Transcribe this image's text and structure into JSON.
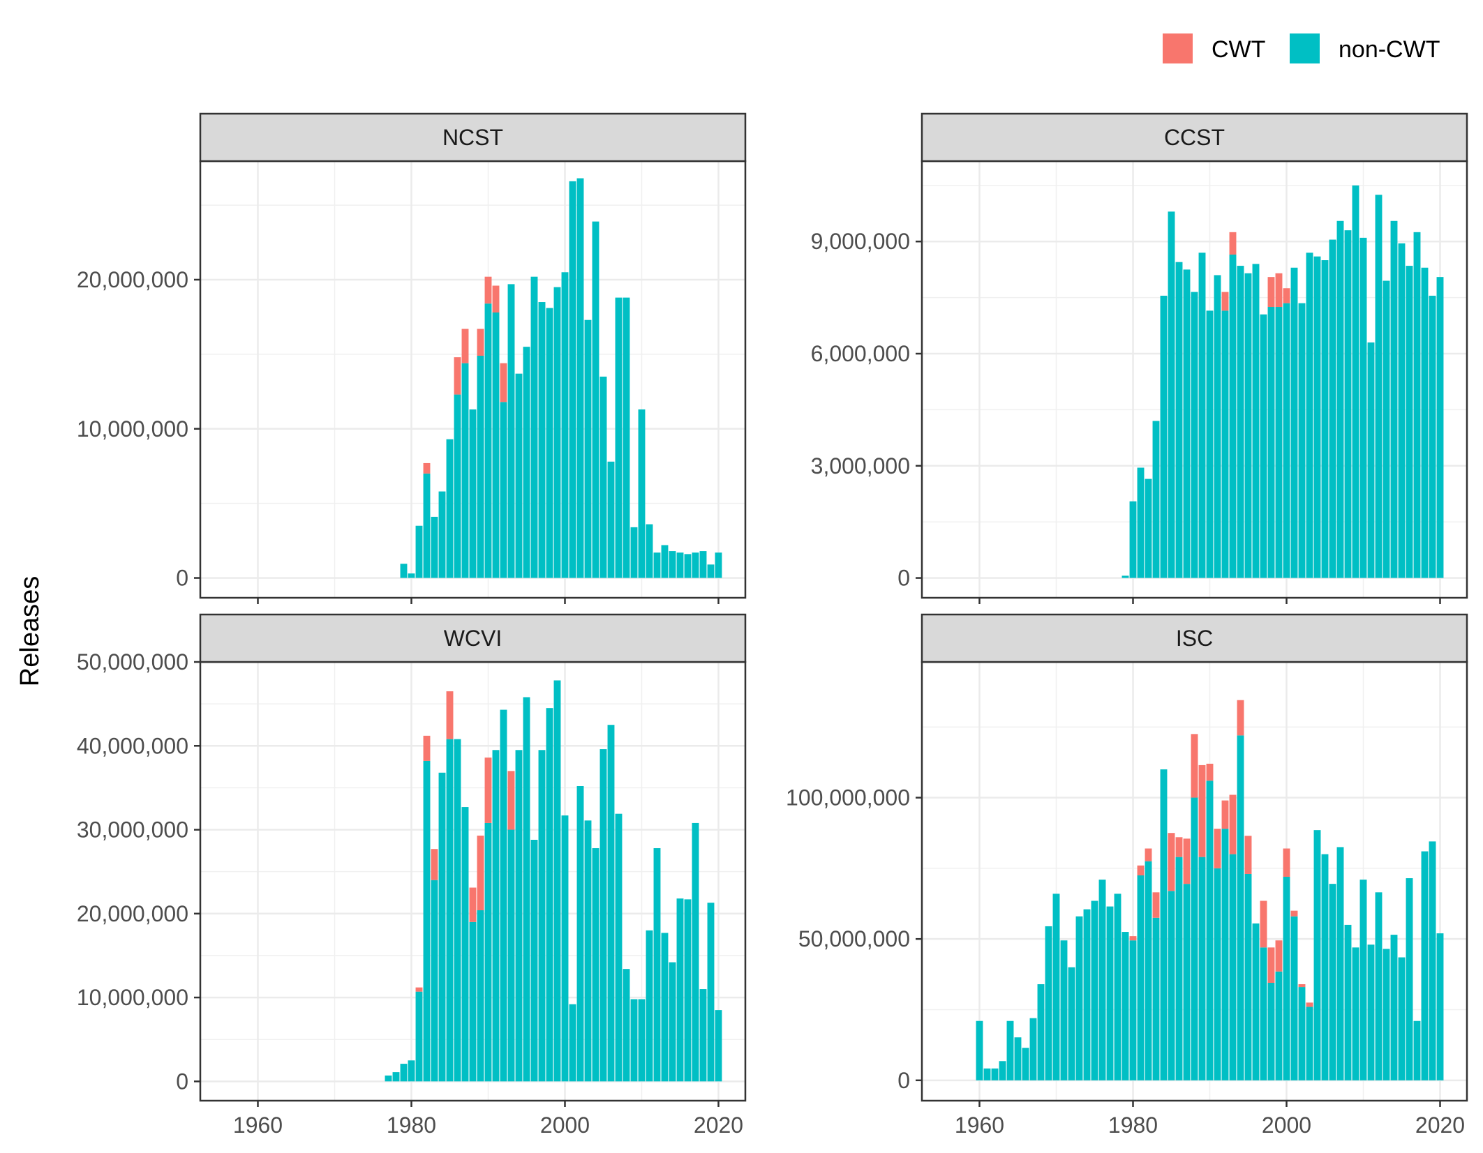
{
  "chart_data": {
    "type": "bar",
    "stacked": true,
    "ylabel": "Releases",
    "xlabel": "",
    "x_ticks": [
      1960,
      1980,
      2000,
      2020
    ],
    "grid": true,
    "legend_position": "top-right",
    "legend": [
      {
        "name": "CWT",
        "color": "#F8766D"
      },
      {
        "name": "non-CWT",
        "color": "#00BFC4"
      }
    ],
    "panels": [
      {
        "title": "NCST",
        "xlim": [
          1952.5,
          2023.5
        ],
        "ylim": [
          -1330000,
          27950000
        ],
        "y_ticks": [
          0,
          10000000,
          20000000
        ],
        "y_tick_labels": [
          "0",
          "10,000,000",
          "20,000,000"
        ],
        "years": [
          1979,
          1980,
          1981,
          1982,
          1983,
          1984,
          1985,
          1986,
          1987,
          1988,
          1989,
          1990,
          1991,
          1992,
          1993,
          1994,
          1995,
          1996,
          1997,
          1998,
          1999,
          2000,
          2001,
          2002,
          2003,
          2004,
          2005,
          2006,
          2007,
          2008,
          2009,
          2010,
          2011,
          2012,
          2013,
          2014,
          2015,
          2016,
          2017,
          2018,
          2019,
          2020
        ],
        "cwt": [
          0,
          0,
          0,
          700000,
          0,
          0,
          0,
          2500000,
          2300000,
          0,
          1800000,
          1800000,
          1800000,
          2600000,
          0,
          0,
          0,
          0,
          0,
          0,
          0,
          0,
          0,
          0,
          0,
          0,
          0,
          0,
          0,
          0,
          0,
          0,
          0,
          0,
          0,
          0,
          0,
          0,
          0,
          0,
          0,
          0
        ],
        "non_cwt": [
          950000,
          300000,
          3500000,
          7000000,
          4100000,
          5800000,
          9300000,
          12300000,
          14400000,
          11300000,
          14900000,
          18400000,
          17800000,
          11800000,
          19700000,
          13700000,
          15500000,
          20200000,
          18500000,
          18100000,
          19500000,
          20500000,
          26600000,
          26800000,
          17300000,
          23900000,
          13500000,
          7800000,
          18800000,
          18800000,
          3400000,
          11300000,
          3600000,
          1700000,
          2200000,
          1800000,
          1700000,
          1600000,
          1700000,
          1800000,
          900000,
          1700000
        ]
      },
      {
        "title": "CCST",
        "xlim": [
          1952.5,
          2023.5
        ],
        "ylim": [
          -530000,
          11150000
        ],
        "y_ticks": [
          0,
          3000000,
          6000000,
          9000000
        ],
        "y_tick_labels": [
          "0",
          "3,000,000",
          "6,000,000",
          "9,000,000"
        ],
        "years": [
          1979,
          1980,
          1981,
          1982,
          1983,
          1984,
          1985,
          1986,
          1987,
          1988,
          1989,
          1990,
          1991,
          1992,
          1993,
          1994,
          1995,
          1996,
          1997,
          1998,
          1999,
          2000,
          2001,
          2002,
          2003,
          2004,
          2005,
          2006,
          2007,
          2008,
          2009,
          2010,
          2011,
          2012,
          2013,
          2014,
          2015,
          2016,
          2017,
          2018,
          2019,
          2020
        ],
        "cwt": [
          0,
          0,
          0,
          0,
          0,
          0,
          0,
          0,
          0,
          0,
          0,
          0,
          0,
          500000,
          600000,
          0,
          0,
          0,
          0,
          800000,
          900000,
          400000,
          0,
          0,
          0,
          0,
          0,
          0,
          0,
          0,
          0,
          0,
          0,
          0,
          0,
          0,
          0,
          0,
          0,
          0,
          0,
          0
        ],
        "non_cwt": [
          60000,
          2050000,
          2950000,
          2650000,
          4200000,
          7550000,
          9800000,
          8450000,
          8250000,
          7650000,
          8700000,
          7150000,
          8100000,
          7150000,
          8650000,
          8350000,
          8150000,
          8400000,
          7050000,
          7250000,
          7250000,
          7350000,
          8300000,
          7350000,
          8700000,
          8600000,
          8500000,
          9050000,
          9550000,
          9300000,
          10500000,
          9100000,
          6300000,
          10250000,
          7950000,
          9550000,
          8950000,
          8350000,
          9250000,
          8300000,
          7550000,
          8050000
        ]
      },
      {
        "title": "WCVI",
        "xlim": [
          1952.5,
          2023.5
        ],
        "ylim": [
          -2300000,
          50000000
        ],
        "y_ticks": [
          0,
          10000000,
          20000000,
          30000000,
          40000000,
          50000000
        ],
        "y_tick_labels": [
          "0",
          "10,000,000",
          "20,000,000",
          "30,000,000",
          "40,000,000",
          "50,000,000"
        ],
        "years": [
          1977,
          1978,
          1979,
          1980,
          1981,
          1982,
          1983,
          1984,
          1985,
          1986,
          1987,
          1988,
          1989,
          1990,
          1991,
          1992,
          1993,
          1994,
          1995,
          1996,
          1997,
          1998,
          1999,
          2000,
          2001,
          2002,
          2003,
          2004,
          2005,
          2006,
          2007,
          2008,
          2009,
          2010,
          2011,
          2012,
          2013,
          2014,
          2015,
          2016,
          2017,
          2018,
          2019,
          2020
        ],
        "cwt": [
          0,
          0,
          0,
          0,
          500000,
          3000000,
          3700000,
          0,
          5700000,
          0,
          0,
          4100000,
          8900000,
          7800000,
          0,
          0,
          7000000,
          0,
          0,
          0,
          0,
          0,
          0,
          0,
          0,
          0,
          0,
          0,
          0,
          0,
          0,
          0,
          0,
          0,
          0,
          0,
          0,
          0,
          0,
          0,
          0,
          0,
          0,
          0
        ],
        "non_cwt": [
          700000,
          1100000,
          2100000,
          2500000,
          10700000,
          38200000,
          24000000,
          36800000,
          40800000,
          40800000,
          32700000,
          19000000,
          20400000,
          30800000,
          39500000,
          44300000,
          30000000,
          39500000,
          45800000,
          28800000,
          39500000,
          44500000,
          47800000,
          31700000,
          9200000,
          35200000,
          31100000,
          27800000,
          39600000,
          42500000,
          31900000,
          13400000,
          9800000,
          9800000,
          18000000,
          27800000,
          17700000,
          14200000,
          21800000,
          21700000,
          30800000,
          11000000,
          21300000,
          8500000
        ]
      },
      {
        "title": "ISC",
        "xlim": [
          1952.5,
          2023.5
        ],
        "ylim": [
          -7200000,
          148000000
        ],
        "y_ticks": [
          0,
          50000000,
          100000000
        ],
        "y_tick_labels": [
          "0",
          "50,000,000",
          "100,000,000"
        ],
        "years": [
          1960,
          1961,
          1962,
          1963,
          1964,
          1965,
          1966,
          1967,
          1968,
          1969,
          1970,
          1971,
          1972,
          1973,
          1974,
          1975,
          1976,
          1977,
          1978,
          1979,
          1980,
          1981,
          1982,
          1983,
          1984,
          1985,
          1986,
          1987,
          1988,
          1989,
          1990,
          1991,
          1992,
          1993,
          1994,
          1995,
          1996,
          1997,
          1998,
          1999,
          2000,
          2001,
          2002,
          2003,
          2004,
          2005,
          2006,
          2007,
          2008,
          2009,
          2010,
          2011,
          2012,
          2013,
          2014,
          2015,
          2016,
          2017,
          2018,
          2019,
          2020
        ],
        "cwt": [
          0,
          0,
          0,
          0,
          0,
          0,
          0,
          0,
          0,
          0,
          0,
          0,
          0,
          0,
          0,
          0,
          0,
          0,
          0,
          0,
          1500000,
          3500000,
          4500000,
          9000000,
          0,
          20500000,
          7000000,
          16000000,
          22500000,
          32500000,
          6000000,
          14000000,
          10000000,
          21000000,
          12500000,
          13500000,
          0,
          16500000,
          12500000,
          11000000,
          10000000,
          2000000,
          1000000,
          1500000,
          0,
          0,
          0,
          0,
          0,
          0,
          0,
          0,
          0,
          0,
          0,
          0,
          0,
          0,
          0,
          0,
          0
        ],
        "non_cwt": [
          21000000,
          4200000,
          4200000,
          6800000,
          21000000,
          15200000,
          11500000,
          22000000,
          34000000,
          54500000,
          66000000,
          49500000,
          40000000,
          58000000,
          60500000,
          63500000,
          71000000,
          61500000,
          66000000,
          52500000,
          49500000,
          72500000,
          77500000,
          57500000,
          110000000,
          67000000,
          79000000,
          69500000,
          100000000,
          79000000,
          106000000,
          75000000,
          89000000,
          80000000,
          122000000,
          73000000,
          55500000,
          47000000,
          34500000,
          38500000,
          72000000,
          58000000,
          33000000,
          26000000,
          88500000,
          80000000,
          69500000,
          82500000,
          55000000,
          47000000,
          71000000,
          48000000,
          66500000,
          46500000,
          51500000,
          43500000,
          71500000,
          21000000,
          81000000,
          84500000,
          52000000
        ]
      }
    ]
  }
}
